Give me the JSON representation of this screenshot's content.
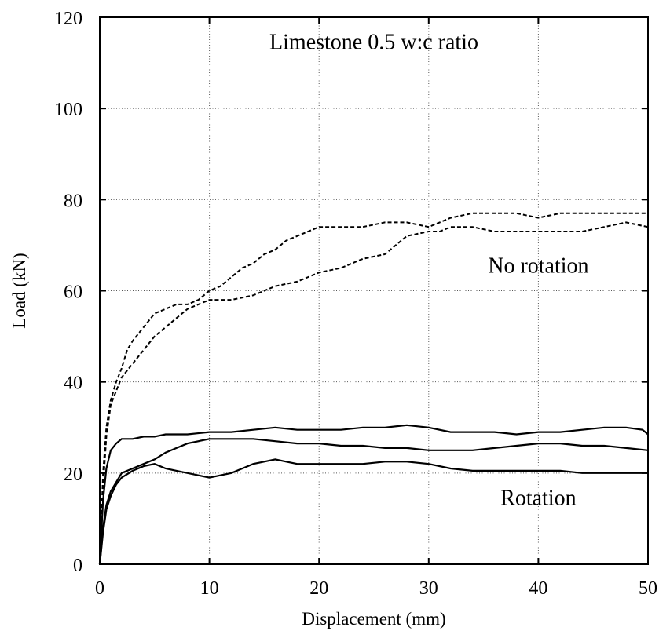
{
  "chart_data": {
    "type": "line",
    "title": "",
    "xlabel": "Displacement (mm)",
    "ylabel": "Load (kN)",
    "xlim": [
      0,
      50
    ],
    "ylim": [
      0,
      120
    ],
    "xticks": [
      0,
      10,
      20,
      30,
      40,
      50
    ],
    "yticks": [
      0,
      20,
      40,
      60,
      80,
      100,
      120
    ],
    "grid": true,
    "annotations": [
      {
        "text": "Limestone 0.5 w:c ratio",
        "x": 25,
        "y": 113
      },
      {
        "text": "No rotation",
        "x": 40,
        "y": 64
      },
      {
        "text": "Rotation",
        "x": 40,
        "y": 13
      }
    ],
    "series": [
      {
        "style": "dashed",
        "x": [
          0,
          0.3,
          0.6,
          1,
          1.5,
          2,
          2.5,
          3,
          4,
          5,
          6,
          7,
          8,
          9,
          10,
          11,
          12,
          13,
          14,
          15,
          16,
          17,
          18,
          19,
          20,
          22,
          24,
          26,
          28,
          30,
          32,
          34,
          36,
          38,
          40,
          42,
          44,
          46,
          48,
          50
        ],
        "y": [
          0,
          20,
          30,
          36,
          40,
          43,
          47,
          49,
          52,
          55,
          56,
          57,
          57,
          58,
          60,
          61,
          63,
          65,
          66,
          68,
          69,
          71,
          72,
          73,
          74,
          74,
          74,
          75,
          75,
          74,
          76,
          77,
          77,
          77,
          76,
          77,
          77,
          77,
          77,
          77
        ]
      },
      {
        "style": "dashed",
        "x": [
          0,
          0.3,
          0.6,
          1,
          1.5,
          2,
          3,
          4,
          5,
          6,
          7,
          8,
          9,
          10,
          12,
          14,
          15,
          16,
          18,
          20,
          22,
          24,
          26,
          27,
          28,
          30,
          31,
          32,
          34,
          36,
          38,
          40,
          42,
          44,
          46,
          48,
          50
        ],
        "y": [
          0,
          17,
          28,
          35,
          38,
          41,
          44,
          47,
          50,
          52,
          54,
          56,
          57,
          58,
          58,
          59,
          60,
          61,
          62,
          64,
          65,
          67,
          68,
          70,
          72,
          73,
          73,
          74,
          74,
          73,
          73,
          73,
          73,
          73,
          74,
          75,
          74
        ]
      },
      {
        "style": "solid",
        "x": [
          0,
          0.3,
          0.6,
          1,
          1.5,
          2,
          3,
          4,
          5,
          6,
          8,
          10,
          12,
          14,
          16,
          18,
          20,
          22,
          24,
          26,
          28,
          30,
          32,
          34,
          36,
          38,
          40,
          42,
          44,
          46,
          48,
          49.5,
          50
        ],
        "y": [
          0,
          14,
          21,
          25,
          26.5,
          27.5,
          27.5,
          28,
          28,
          28.5,
          28.5,
          29,
          29,
          29.5,
          30,
          29.5,
          29.5,
          29.5,
          30,
          30,
          30.5,
          30,
          29,
          29,
          29,
          28.5,
          29,
          29,
          29.5,
          30,
          30,
          29.5,
          28.5
        ]
      },
      {
        "style": "solid",
        "x": [
          0,
          0.3,
          0.6,
          1,
          1.5,
          2,
          3,
          4,
          5,
          6,
          7,
          8,
          10,
          12,
          14,
          16,
          18,
          20,
          22,
          24,
          26,
          28,
          30,
          32,
          34,
          36,
          38,
          40,
          42,
          44,
          46,
          48,
          50
        ],
        "y": [
          0,
          8,
          13,
          16,
          18,
          20,
          21,
          22,
          23,
          24.5,
          25.5,
          26.5,
          27.5,
          27.5,
          27.5,
          27,
          26.5,
          26.5,
          26,
          26,
          25.5,
          25.5,
          25,
          25,
          25,
          25.5,
          26,
          26.5,
          26.5,
          26,
          26,
          25.5,
          25
        ]
      },
      {
        "style": "solid",
        "x": [
          0,
          0.3,
          0.6,
          1,
          1.5,
          2,
          3,
          4,
          5,
          6,
          7,
          8,
          9,
          10,
          11,
          12,
          13,
          14,
          15,
          16,
          17,
          18,
          20,
          22,
          24,
          26,
          28,
          30,
          32,
          34,
          36,
          38,
          40,
          42,
          44,
          46,
          48,
          50
        ],
        "y": [
          0,
          7,
          12,
          15,
          17.5,
          19,
          20.5,
          21.5,
          22,
          21,
          20.5,
          20,
          19.5,
          19,
          19.5,
          20,
          21,
          22,
          22.5,
          23,
          22.5,
          22,
          22,
          22,
          22,
          22.5,
          22.5,
          22,
          21,
          20.5,
          20.5,
          20.5,
          20.5,
          20.5,
          20,
          20,
          20,
          20
        ]
      }
    ]
  }
}
